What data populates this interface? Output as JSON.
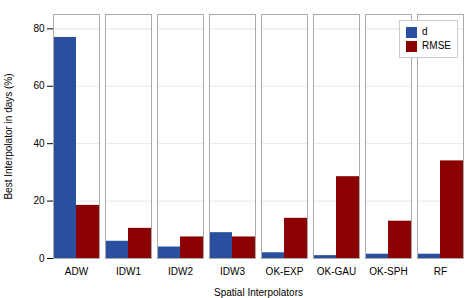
{
  "chart_data": {
    "type": "bar",
    "categories": [
      "ADW",
      "IDW1",
      "IDW2",
      "IDW3",
      "OK-EXP",
      "OK-GAU",
      "OK-SPH",
      "RF"
    ],
    "series": [
      {
        "name": "d",
        "color": "#2B4FA0",
        "values": [
          77,
          6,
          4,
          9,
          2,
          1,
          1.5,
          1.5
        ]
      },
      {
        "name": "RMSE",
        "color": "#8B0000",
        "values": [
          18.5,
          10.5,
          7.5,
          7.5,
          14,
          28.5,
          13,
          34
        ]
      }
    ],
    "xlabel": "Spatial Interpolators",
    "ylabel": "Best Interpolator in days (%)",
    "ylim": [
      0,
      85
    ],
    "yticks": [
      0,
      20,
      40,
      60,
      80
    ],
    "grid": true,
    "legend": "upper right"
  }
}
